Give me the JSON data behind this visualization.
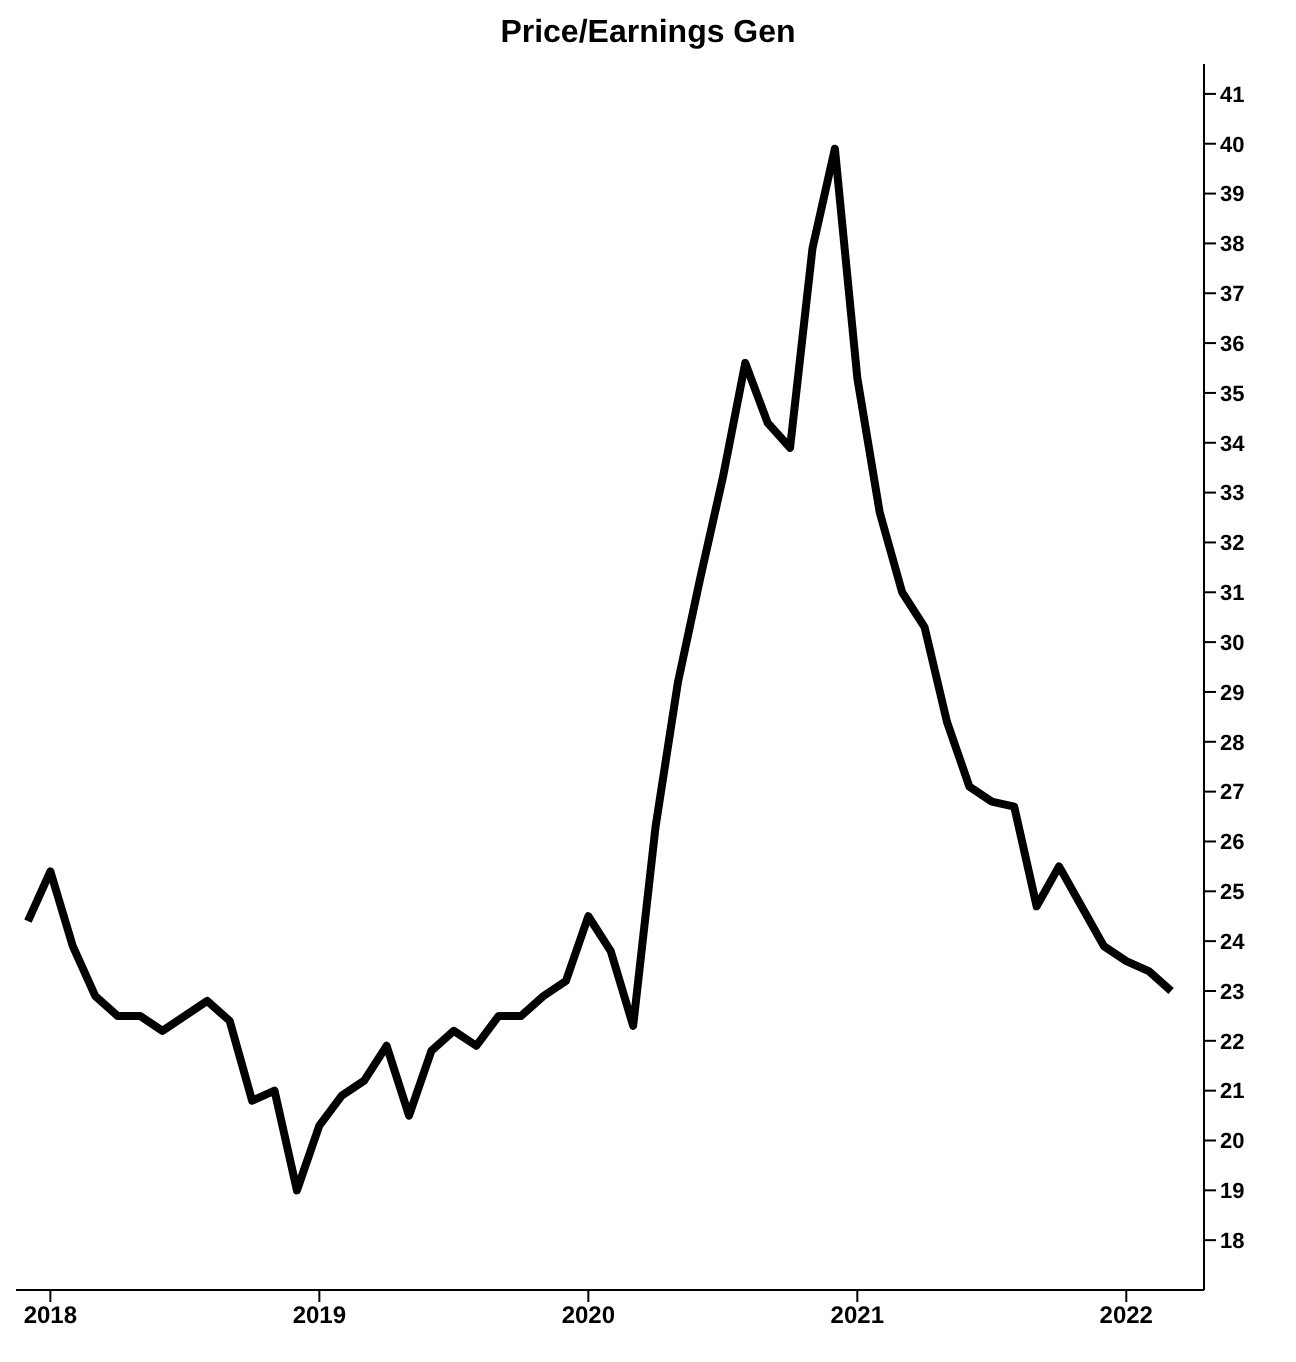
{
  "chart_data": {
    "type": "line",
    "title": "Price/Earnings Gen",
    "x": [
      "2017-12",
      "2018-01",
      "2018-02",
      "2018-03",
      "2018-04",
      "2018-05",
      "2018-06",
      "2018-07",
      "2018-08",
      "2018-09",
      "2018-10",
      "2018-11",
      "2018-12",
      "2019-01",
      "2019-02",
      "2019-03",
      "2019-04",
      "2019-05",
      "2019-06",
      "2019-07",
      "2019-08",
      "2019-09",
      "2019-10",
      "2019-11",
      "2019-12",
      "2020-01",
      "2020-02",
      "2020-03",
      "2020-04",
      "2020-05",
      "2020-06",
      "2020-07",
      "2020-08",
      "2020-09",
      "2020-10",
      "2020-11",
      "2020-12",
      "2021-01",
      "2021-02",
      "2021-03",
      "2021-04",
      "2021-05",
      "2021-06",
      "2021-07",
      "2021-08",
      "2021-09",
      "2021-10",
      "2021-11",
      "2021-12",
      "2022-01",
      "2022-02",
      "2022-03"
    ],
    "series": [
      {
        "color": "#000000",
        "values": [
          24.4,
          25.4,
          23.9,
          22.9,
          22.5,
          22.5,
          22.2,
          22.5,
          22.8,
          22.4,
          20.8,
          21.0,
          19.0,
          20.3,
          20.9,
          21.2,
          21.9,
          20.5,
          21.8,
          22.2,
          21.9,
          22.5,
          22.5,
          22.9,
          23.2,
          24.5,
          23.8,
          22.3,
          26.3,
          29.2,
          31.3,
          33.3,
          35.6,
          34.4,
          33.9,
          37.9,
          39.9,
          35.3,
          32.6,
          31.0,
          30.3,
          28.4,
          27.1,
          26.8,
          26.7,
          24.7,
          25.5,
          24.7,
          23.9,
          23.6,
          23.4,
          23.0
        ]
      }
    ],
    "xlim": [
      "2017-11-15",
      "2022-04-15"
    ],
    "xticks": [
      {
        "value": "2018",
        "label": "2018"
      },
      {
        "value": "2019",
        "label": "2019"
      },
      {
        "value": "2020",
        "label": "2020"
      },
      {
        "value": "2021",
        "label": "2021"
      },
      {
        "value": "2022",
        "label": "2022"
      }
    ],
    "ylim": [
      17,
      41.6
    ],
    "yticks": [
      18,
      19,
      20,
      21,
      22,
      23,
      24,
      25,
      26,
      27,
      28,
      29,
      30,
      31,
      32,
      33,
      34,
      35,
      36,
      37,
      38,
      39,
      40,
      41
    ],
    "grid": false,
    "legend": false,
    "marker": "none",
    "line_style": "solid"
  }
}
